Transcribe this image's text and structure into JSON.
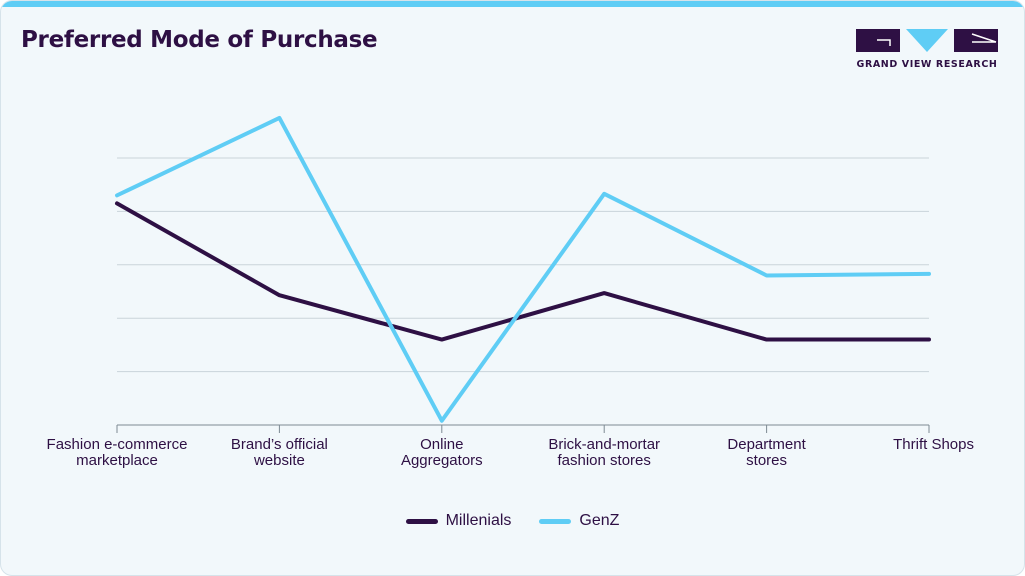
{
  "title": "Preferred Mode of Purchase",
  "brand": "GRAND VIEW RESEARCH",
  "colors": {
    "millenials": "#2e1044",
    "genz": "#5fcdf5",
    "grid": "#c9d4da",
    "axis": "#7d8a93",
    "label": "#2e1044"
  },
  "chart_data": {
    "type": "line",
    "title": "Preferred Mode of Purchase",
    "xlabel": "",
    "ylabel": "",
    "ylim": [
      0,
      5
    ],
    "grid": true,
    "legend_position": "bottom-center",
    "categories": [
      [
        "Fashion e-commerce",
        "marketplace"
      ],
      [
        "Brand’s official",
        "website"
      ],
      [
        "Online",
        "Aggregators"
      ],
      [
        "Brick-and-mortar",
        "fashion stores"
      ],
      [
        "Department",
        "stores"
      ],
      [
        "Thrift Shops"
      ]
    ],
    "series": [
      {
        "name": "Millenials",
        "values": [
          4.15,
          2.43,
          1.6,
          2.47,
          1.6,
          1.6
        ]
      },
      {
        "name": "GenZ",
        "values": [
          4.3,
          5.75,
          0.08,
          4.33,
          2.8,
          2.83
        ]
      }
    ]
  }
}
